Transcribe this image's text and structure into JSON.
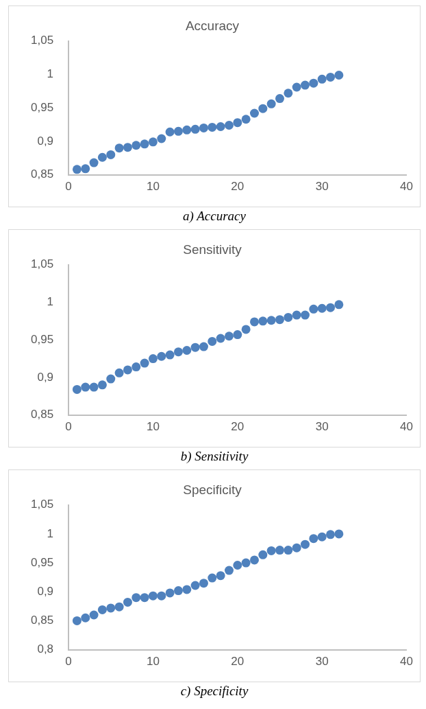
{
  "chart_data": [
    {
      "type": "scatter",
      "title": "Accuracy",
      "annotations": [
        "a) Accuracy"
      ],
      "marker": "circle",
      "grid": false,
      "xlim": [
        0,
        40
      ],
      "xticks": [
        0,
        10,
        20,
        30,
        40
      ],
      "ylim": [
        0.85,
        1.05
      ],
      "yticks": [
        {
          "value": 0.85,
          "label": "0,85"
        },
        {
          "value": 0.9,
          "label": "0,9"
        },
        {
          "value": 0.95,
          "label": "0,95"
        },
        {
          "value": 1,
          "label": "1"
        },
        {
          "value": 1.05,
          "label": "1,05"
        }
      ],
      "series": [
        {
          "color": "#4f81bd",
          "x": [
            1,
            2,
            3,
            4,
            5,
            6,
            7,
            8,
            9,
            10,
            11,
            12,
            13,
            14,
            15,
            16,
            17,
            18,
            19,
            20,
            21,
            22,
            23,
            24,
            25,
            26,
            27,
            28,
            29,
            30,
            31,
            32
          ],
          "values": [
            0.858,
            0.859,
            0.868,
            0.876,
            0.88,
            0.89,
            0.891,
            0.894,
            0.896,
            0.899,
            0.904,
            0.914,
            0.915,
            0.917,
            0.918,
            0.92,
            0.921,
            0.922,
            0.924,
            0.928,
            0.933,
            0.942,
            0.949,
            0.956,
            0.964,
            0.972,
            0.981,
            0.984,
            0.987,
            0.993,
            0.996,
            0.999
          ]
        }
      ]
    },
    {
      "type": "scatter",
      "title": "Sensitivity",
      "annotations": [
        "b) Sensitivity"
      ],
      "marker": "circle",
      "grid": false,
      "xlim": [
        0,
        40
      ],
      "xticks": [
        0,
        10,
        20,
        30,
        40
      ],
      "ylim": [
        0.85,
        1.05
      ],
      "yticks": [
        {
          "value": 0.85,
          "label": "0,85"
        },
        {
          "value": 0.9,
          "label": "0,9"
        },
        {
          "value": 0.95,
          "label": "0,95"
        },
        {
          "value": 1,
          "label": "1"
        },
        {
          "value": 1.05,
          "label": "1,05"
        }
      ],
      "series": [
        {
          "color": "#4f81bd",
          "x": [
            1,
            2,
            3,
            4,
            5,
            6,
            7,
            8,
            9,
            10,
            11,
            12,
            13,
            14,
            15,
            16,
            17,
            18,
            19,
            20,
            21,
            22,
            23,
            24,
            25,
            26,
            27,
            28,
            29,
            30,
            31,
            32
          ],
          "values": [
            0.884,
            0.887,
            0.887,
            0.89,
            0.898,
            0.906,
            0.91,
            0.914,
            0.919,
            0.925,
            0.928,
            0.93,
            0.934,
            0.936,
            0.94,
            0.941,
            0.948,
            0.952,
            0.955,
            0.957,
            0.964,
            0.974,
            0.975,
            0.976,
            0.977,
            0.98,
            0.983,
            0.983,
            0.991,
            0.992,
            0.993,
            0.997
          ]
        }
      ]
    },
    {
      "type": "scatter",
      "title": "Specificity",
      "annotations": [
        "c) Specificity"
      ],
      "marker": "circle",
      "grid": false,
      "xlim": [
        0,
        40
      ],
      "xticks": [
        0,
        10,
        20,
        30,
        40
      ],
      "ylim": [
        0.8,
        1.05
      ],
      "yticks": [
        {
          "value": 0.8,
          "label": "0,8"
        },
        {
          "value": 0.85,
          "label": "0,85"
        },
        {
          "value": 0.9,
          "label": "0,9"
        },
        {
          "value": 0.95,
          "label": "0,95"
        },
        {
          "value": 1,
          "label": "1"
        },
        {
          "value": 1.05,
          "label": "1,05"
        }
      ],
      "series": [
        {
          "color": "#4f81bd",
          "x": [
            1,
            2,
            3,
            4,
            5,
            6,
            7,
            8,
            9,
            10,
            11,
            12,
            13,
            14,
            15,
            16,
            17,
            18,
            19,
            20,
            21,
            22,
            23,
            24,
            25,
            26,
            27,
            28,
            29,
            30,
            31,
            32
          ],
          "values": [
            0.85,
            0.855,
            0.86,
            0.869,
            0.872,
            0.874,
            0.882,
            0.89,
            0.89,
            0.893,
            0.893,
            0.898,
            0.902,
            0.904,
            0.911,
            0.915,
            0.924,
            0.928,
            0.937,
            0.946,
            0.95,
            0.955,
            0.964,
            0.971,
            0.972,
            0.972,
            0.976,
            0.982,
            0.992,
            0.995,
            0.999,
            1.0
          ]
        }
      ]
    }
  ]
}
